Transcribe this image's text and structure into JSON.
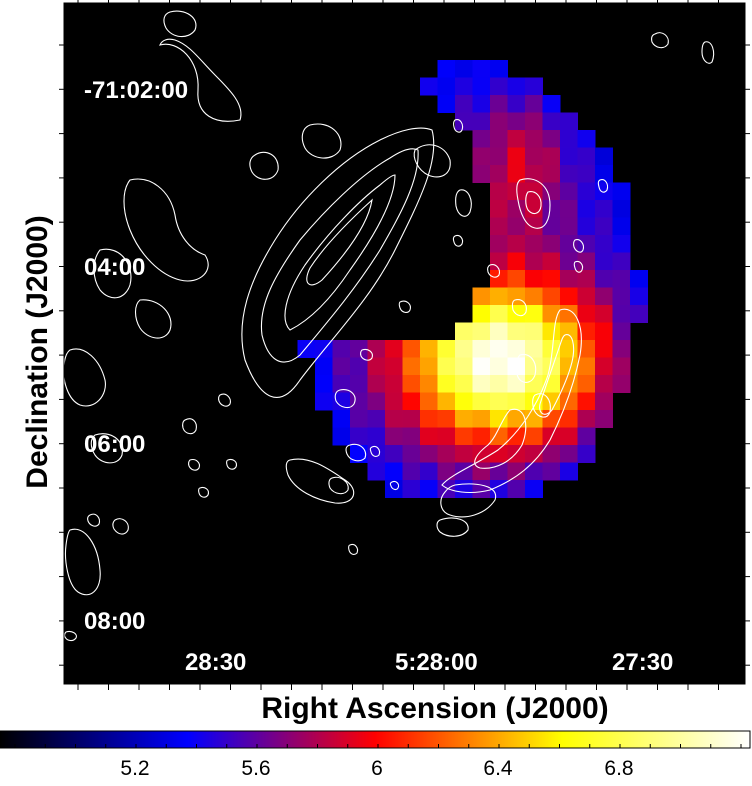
{
  "image": {
    "axes": {
      "x_title": "Right Ascension (J2000)",
      "y_title": "Declination (J2000)",
      "x_tick_labels": [
        "28:30",
        "5:28:00",
        "27:30"
      ],
      "y_tick_labels": [
        "-71:02:00",
        "04:00",
        "06:00",
        "08:00"
      ]
    },
    "colorbar": {
      "tick_labels": [
        "5.2",
        "5.6",
        "6",
        "6.4",
        "6.8"
      ],
      "colormap": [
        "#000000",
        "#0000ff",
        "#ff0000",
        "#ffff00",
        "#ffffff"
      ]
    },
    "colors": {
      "plot_background": "#000000",
      "contour": "#ffffff",
      "frame": "#000000"
    }
  }
}
